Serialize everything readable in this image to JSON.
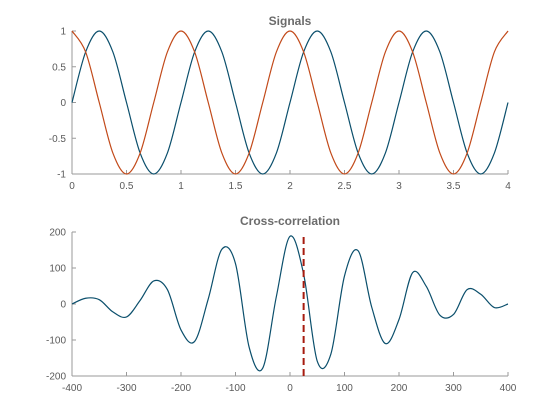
{
  "chart_data": [
    {
      "type": "line",
      "title": "Signals",
      "xlabel": "",
      "ylabel": "",
      "xlim": [
        0,
        4
      ],
      "ylim": [
        -1,
        1
      ],
      "xticks": [
        0,
        0.5,
        1,
        1.5,
        2,
        2.5,
        3,
        3.5,
        4
      ],
      "xtick_labels": [
        "0",
        "0.5",
        "1",
        "1.5",
        "2",
        "2.5",
        "3",
        "3.5",
        "4"
      ],
      "yticks": [
        -1,
        -0.5,
        0,
        0.5,
        1
      ],
      "ytick_labels": [
        "-1",
        "-0.5",
        "0",
        "0.5",
        "1"
      ],
      "grid": false,
      "series": [
        {
          "color": "#0b4f6c",
          "x": [
            0,
            0.125,
            0.25,
            0.375,
            0.5,
            0.625,
            0.75,
            0.875,
            1.0,
            1.125,
            1.25,
            1.375,
            1.5,
            1.625,
            1.75,
            1.875,
            2.0,
            2.125,
            2.25,
            2.375,
            2.5,
            2.625,
            2.75,
            2.875,
            3.0,
            3.125,
            3.25,
            3.375,
            3.5,
            3.625,
            3.75,
            3.875,
            4.0
          ],
          "values": [
            0,
            0.707,
            1,
            0.707,
            0,
            -0.707,
            -1,
            -0.707,
            0,
            0.707,
            1,
            0.707,
            0,
            -0.707,
            -1,
            -0.707,
            0,
            0.707,
            1,
            0.707,
            0,
            -0.707,
            -1,
            -0.707,
            0,
            0.707,
            1,
            0.707,
            0,
            -0.707,
            -1,
            -0.707,
            0
          ]
        },
        {
          "color": "#c24a1a",
          "x": [
            0,
            0.125,
            0.25,
            0.375,
            0.5,
            0.625,
            0.75,
            0.875,
            1.0,
            1.125,
            1.25,
            1.375,
            1.5,
            1.625,
            1.75,
            1.875,
            2.0,
            2.125,
            2.25,
            2.375,
            2.5,
            2.625,
            2.75,
            2.875,
            3.0,
            3.125,
            3.25,
            3.375,
            3.5,
            3.625,
            3.75,
            3.875,
            4.0
          ],
          "values": [
            1,
            0.707,
            0,
            -0.707,
            -1,
            -0.707,
            0,
            0.707,
            1,
            0.707,
            0,
            -0.707,
            -1,
            -0.707,
            0,
            0.707,
            1,
            0.707,
            0,
            -0.707,
            -1,
            -0.707,
            0,
            0.707,
            1,
            0.707,
            0,
            -0.707,
            -1,
            -0.707,
            0,
            0.707,
            1
          ]
        }
      ]
    },
    {
      "type": "line",
      "title": "Cross-correlation",
      "xlabel": "",
      "ylabel": "",
      "xlim": [
        -400,
        400
      ],
      "ylim": [
        -200,
        200
      ],
      "xticks": [
        -400,
        -300,
        -200,
        -100,
        0,
        100,
        200,
        300,
        400
      ],
      "xtick_labels": [
        "-400",
        "-300",
        "-200",
        "-100",
        "0",
        "100",
        "200",
        "300",
        "400"
      ],
      "yticks": [
        -200,
        -100,
        0,
        100,
        200
      ],
      "ytick_labels": [
        "-200",
        "-100",
        "0",
        "100",
        "200"
      ],
      "grid": false,
      "series": [
        {
          "color": "#0b4f6c",
          "x": [
            -400,
            -375,
            -350,
            -325,
            -300,
            -275,
            -250,
            -225,
            -200,
            -175,
            -150,
            -125,
            -100,
            -75,
            -50,
            -25,
            0,
            25,
            50,
            75,
            100,
            125,
            150,
            175,
            200,
            225,
            250,
            275,
            300,
            325,
            350,
            375,
            400
          ],
          "values": [
            0,
            16,
            12,
            -22,
            -36,
            10,
            64,
            40,
            -72,
            -104,
            14,
            152,
            112,
            -120,
            -178,
            21,
            188,
            83,
            -159,
            -139,
            78,
            148,
            -9,
            -110,
            -43,
            87,
            49,
            -31,
            -29,
            40,
            27,
            -10,
            0
          ]
        }
      ],
      "marker_line": {
        "x": 25,
        "y_range": [
          -200,
          191
        ],
        "style": "dashed",
        "color": "#a61b0f"
      }
    }
  ]
}
